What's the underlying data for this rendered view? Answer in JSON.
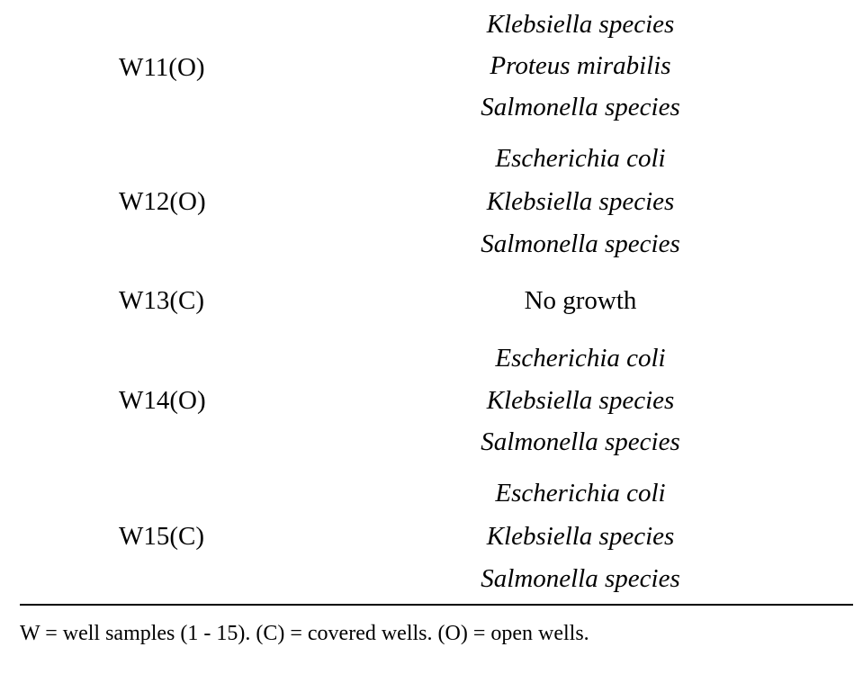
{
  "rows": [
    {
      "sample": "W11(O)",
      "organisms": [
        "Klebsiella species",
        "Proteus mirabilis",
        "Salmonella species"
      ]
    },
    {
      "sample": "W12(O)",
      "organisms": [
        "Escherichia coli",
        "Klebsiella species",
        "Salmonella species"
      ]
    },
    {
      "sample": "W13(C)",
      "result": "No growth"
    },
    {
      "sample": "W14(O)",
      "organisms": [
        "Escherichia coli",
        "Klebsiella species",
        "Salmonella species"
      ]
    },
    {
      "sample": "W15(C)",
      "organisms": [
        "Escherichia coli",
        "Klebsiella species",
        "Salmonella species"
      ]
    }
  ],
  "footnote": "W = well samples (1 - 15). (C) = covered wells. (O) = open wells."
}
